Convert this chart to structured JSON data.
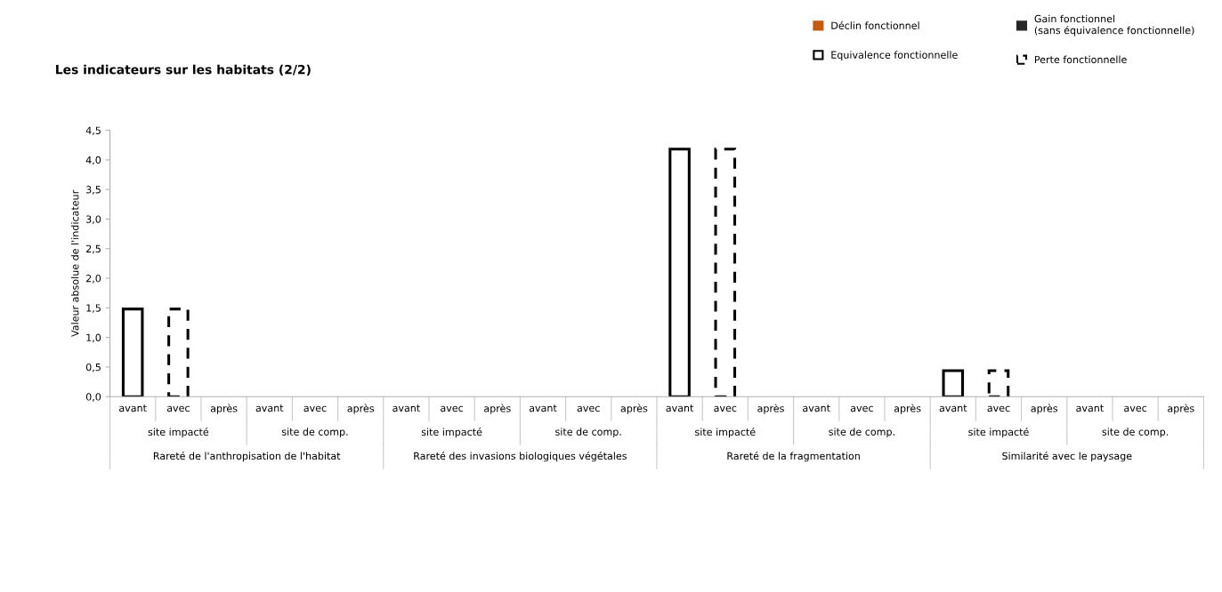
{
  "chart_data": {
    "type": "bar",
    "title": "Les indicateurs sur les habitats (2/2)",
    "ylabel": "Valeur absolue de l'indicateur",
    "categories": [
      "avant",
      "avec",
      "après",
      "avant",
      "avec",
      "après",
      "avant",
      "avec",
      "après",
      "avant",
      "avec",
      "après",
      "avant",
      "avec",
      "après",
      "avant",
      "avec",
      "après",
      "avant",
      "avec",
      "après",
      "avant",
      "avec",
      "après"
    ],
    "series": [
      {
        "name": "Déclin fonctionnel",
        "color": "#c55a11",
        "values": [
          null,
          null,
          null,
          null,
          null,
          null,
          null,
          null,
          null,
          null,
          null,
          null,
          null,
          null,
          null,
          null,
          null,
          null,
          null,
          null,
          null,
          null,
          null,
          null
        ]
      },
      {
        "name": "Equivalence fonctionnelle",
        "color": "#000000",
        "line_style": "solid",
        "values": [
          1.48,
          null,
          null,
          null,
          null,
          null,
          null,
          null,
          null,
          null,
          null,
          null,
          4.18,
          null,
          null,
          null,
          null,
          null,
          0.44,
          null,
          null,
          null,
          null,
          null
        ]
      },
      {
        "name": "Gain fonctionnel\n(sans équivalence fonctionnelle)",
        "color": "#262626",
        "values": [
          null,
          null,
          null,
          null,
          null,
          null,
          null,
          null,
          null,
          null,
          null,
          null,
          null,
          null,
          null,
          null,
          null,
          null,
          null,
          null,
          null,
          null,
          null,
          null
        ]
      },
      {
        "name": "Perte fonctionnelle",
        "color": "#000000",
        "line_style": "dashed",
        "values": [
          null,
          1.48,
          null,
          null,
          null,
          null,
          null,
          null,
          null,
          null,
          null,
          null,
          null,
          4.18,
          null,
          null,
          null,
          null,
          null,
          0.44,
          null,
          null,
          null,
          null
        ]
      }
    ],
    "annotations": [
      "site impacté",
      "site de comp.",
      "site impacté",
      "site de comp.",
      "site impacté",
      "site de comp.",
      "site impacté",
      "site de comp.",
      "Rareté de l'anthropisation de l'habitat",
      "Rareté des invasions biologiques végétales",
      "Rareté de la fragmentation",
      "Similarité avec le paysage"
    ],
    "ylim": [
      0,
      4.5
    ],
    "yticks": [
      {
        "value": 0,
        "label": "0,0"
      },
      {
        "value": 0.5,
        "label": "0,5"
      },
      {
        "value": 1,
        "label": "1,0"
      },
      {
        "value": 1.5,
        "label": "1,5"
      },
      {
        "value": 2,
        "label": "2,0"
      },
      {
        "value": 2.5,
        "label": "2,5"
      },
      {
        "value": 3,
        "label": "3,0"
      },
      {
        "value": 3.5,
        "label": "3,5"
      },
      {
        "value": 4,
        "label": "4,0"
      },
      {
        "value": 4.5,
        "label": "4,5"
      }
    ],
    "grid": false,
    "legend": "top right"
  }
}
